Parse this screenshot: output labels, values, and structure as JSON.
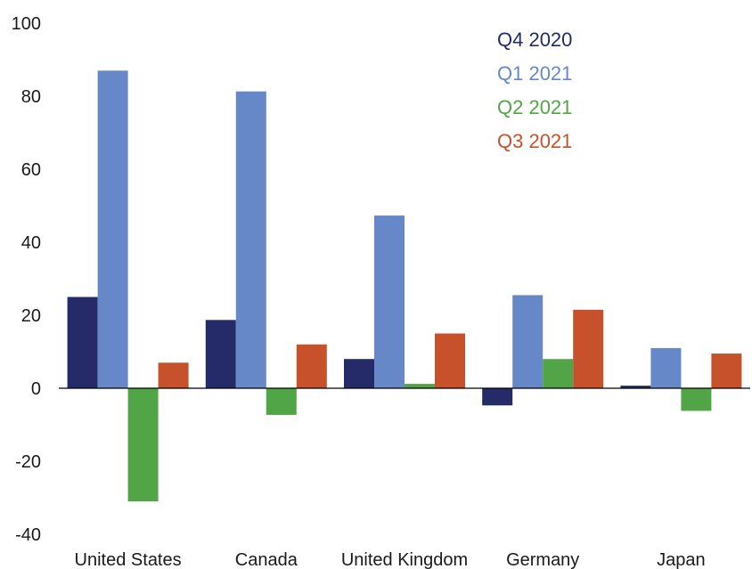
{
  "chart_data": {
    "type": "bar",
    "categories": [
      "United States",
      "Canada",
      "United Kingdom",
      "Germany",
      "Japan"
    ],
    "series": [
      {
        "name": "Q4 2020",
        "color": "#252b68",
        "values": [
          25,
          18.7,
          8,
          -4.7,
          0.7
        ]
      },
      {
        "name": "Q1 2021",
        "color": "#6688c8",
        "values": [
          87,
          81.3,
          47.3,
          25.5,
          11
        ]
      },
      {
        "name": "Q2 2021",
        "color": "#52a546",
        "values": [
          -31,
          -7.3,
          1.2,
          8,
          -6.2
        ]
      },
      {
        "name": "Q3 2021",
        "color": "#c7512a",
        "values": [
          7,
          12,
          15,
          21.5,
          9.5
        ]
      }
    ],
    "yticks": [
      100,
      80,
      60,
      40,
      20,
      0,
      -20,
      -40
    ],
    "ylim": [
      -40,
      100
    ],
    "grid": false,
    "legend": "top-right"
  }
}
